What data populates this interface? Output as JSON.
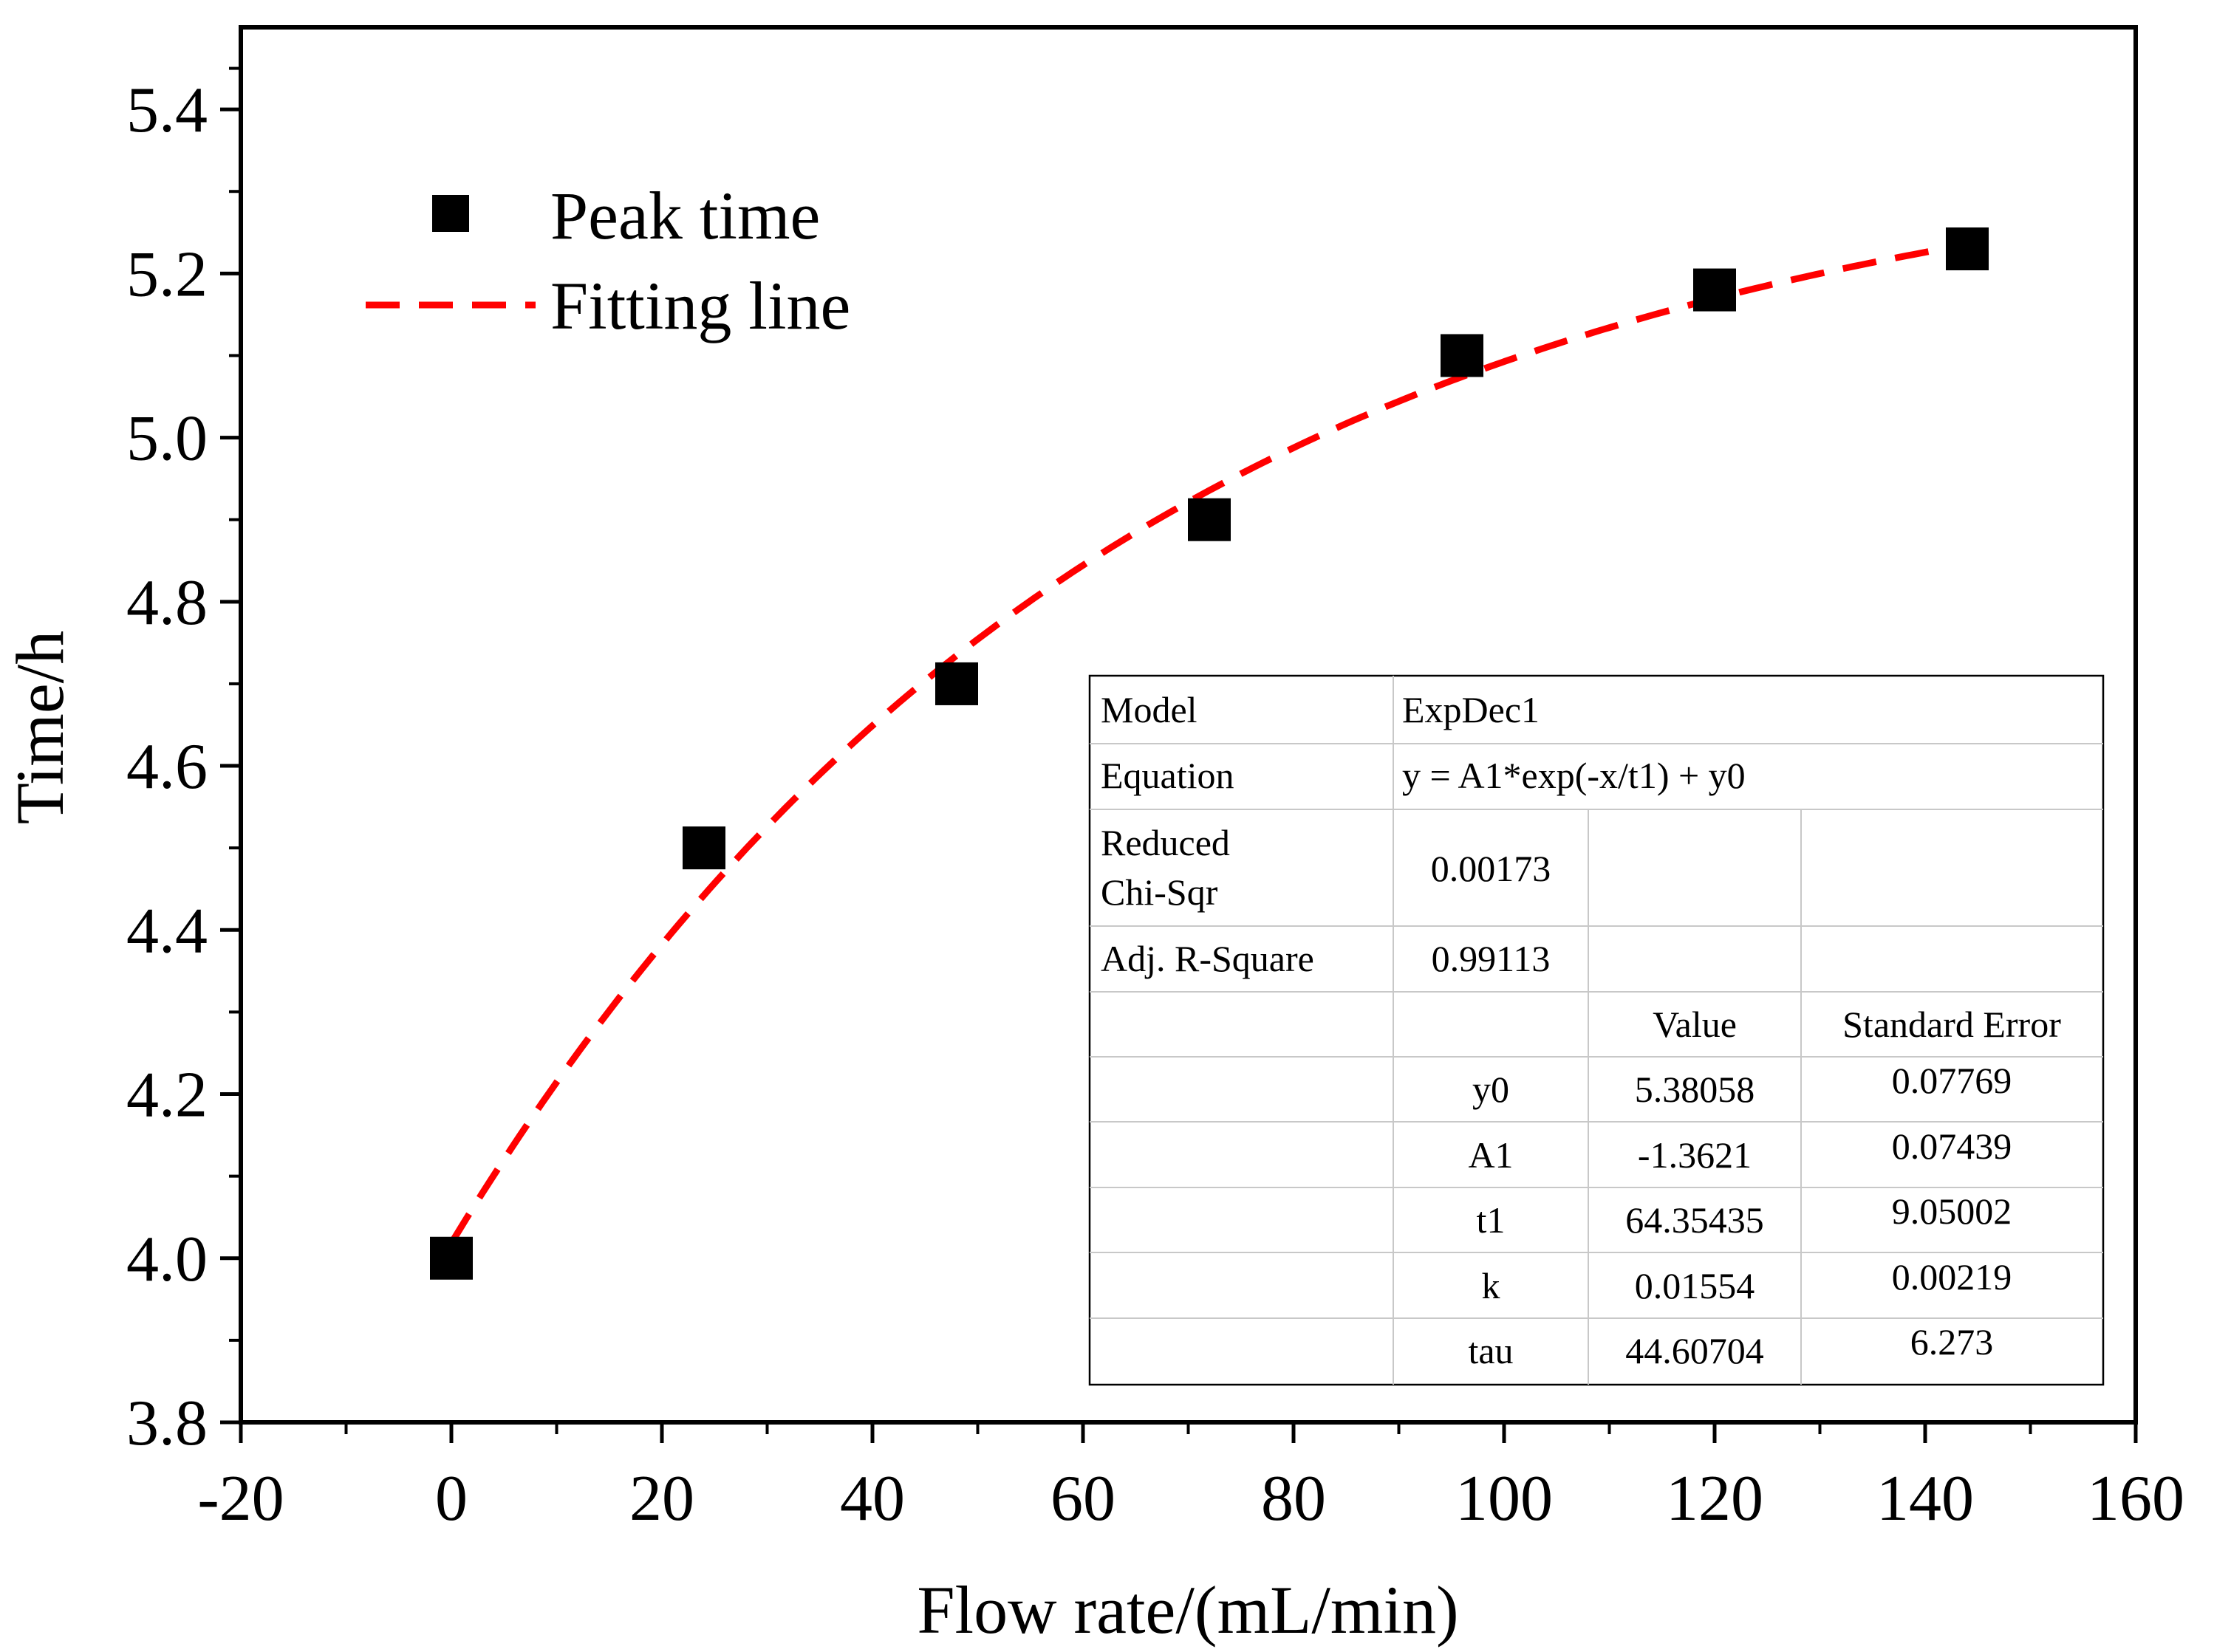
{
  "chart_data": {
    "type": "scatter",
    "title": "",
    "xlabel": "Flow rate/(mL/min)",
    "ylabel": "Time/h",
    "xlim": [
      -20,
      160
    ],
    "ylim": [
      3.8,
      5.5
    ],
    "x_ticks": [
      -20,
      0,
      20,
      40,
      60,
      80,
      100,
      120,
      140,
      160
    ],
    "x_tick_labels": [
      "-20",
      "0",
      "20",
      "40",
      "60",
      "80",
      "100",
      "120",
      "140",
      "160"
    ],
    "y_ticks": [
      3.8,
      4.0,
      4.2,
      4.4,
      4.6,
      4.8,
      5.0,
      5.2,
      5.4
    ],
    "y_tick_labels": [
      "3.8",
      "4.0",
      "4.2",
      "4.4",
      "4.6",
      "4.8",
      "5.0",
      "5.2",
      "5.4"
    ],
    "grid": false,
    "series": [
      {
        "name": "Peak time",
        "kind": "scatter",
        "marker": "square",
        "color": "#000000",
        "x": [
          0,
          24,
          48,
          72,
          96,
          120,
          144
        ],
        "y": [
          4.0,
          4.5,
          4.7,
          4.9,
          5.1,
          5.18,
          5.23
        ]
      },
      {
        "name": "Fitting line",
        "kind": "line",
        "style": "dashed",
        "color": "#ff0000",
        "model": "ExpDec1",
        "params": {
          "A1": -1.3621,
          "t1": 64.35435,
          "y0": 5.38058
        },
        "x_range": [
          0,
          144
        ]
      }
    ],
    "legend": {
      "placement": "top-left",
      "entries": [
        {
          "label": "Peak time",
          "symbol": "square"
        },
        {
          "label": "Fitting line",
          "symbol": "dashed-line"
        }
      ]
    },
    "fit_table": {
      "model_label": "Model",
      "model_value": "ExpDec1",
      "equation_label": "Equation",
      "equation_value": "y = A1*exp(-x/t1) + y0",
      "chi_label_line1": "Reduced",
      "chi_label_line2": "Chi-Sqr",
      "chi_value": "0.00173",
      "r2_label": "Adj. R-Square",
      "r2_value": "0.99113",
      "value_header": "Value",
      "error_header": "Standard Error",
      "params": [
        {
          "name": "y0",
          "value": "5.38058",
          "error": "0.07769"
        },
        {
          "name": "A1",
          "value": "-1.3621",
          "error": "0.07439"
        },
        {
          "name": "t1",
          "value": "64.35435",
          "error": "9.05002"
        },
        {
          "name": "k",
          "value": "0.01554",
          "error": "0.00219"
        },
        {
          "name": "tau",
          "value": "44.60704",
          "error": "6.273"
        }
      ]
    }
  }
}
